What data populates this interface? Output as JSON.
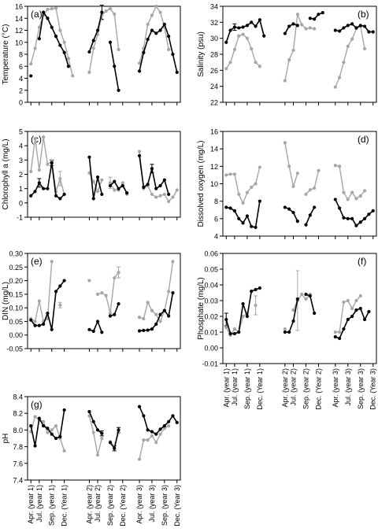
{
  "figure": {
    "x_tick_labels": [
      "Apr. (year 1)",
      "Jul. (year 1)",
      "Sep. (year 1)",
      "Dec. (Year 1)",
      "Apr. (year 2)",
      "Jul. (year 2)",
      "Sep. (year 2)",
      "Dec. (Year 2)",
      "Apr. (year 3)",
      "Jul. (year 3)",
      "Sep. (year 3)",
      "Dec. (Year 3)"
    ]
  },
  "colors": {
    "series_black": "#000000",
    "series_grey": "#a6a6a6",
    "axis": "#000000"
  },
  "chart_data": [
    {
      "type": "line",
      "panel_label": "(a)",
      "ylabel": "Temperature (°C)",
      "ylim": [
        0,
        16
      ],
      "yticks": [
        "0",
        "2",
        "4",
        "6",
        "8",
        "10",
        "12",
        "14",
        "16"
      ],
      "x": [
        1,
        2,
        3,
        4,
        5,
        6,
        7,
        8,
        9,
        10,
        11,
        12,
        13,
        14,
        15,
        16,
        17,
        18,
        19,
        20,
        21,
        22,
        23,
        24,
        25,
        26,
        27,
        28,
        29,
        30,
        31,
        32,
        33,
        34,
        35,
        36
      ],
      "series": [
        {
          "color": "black",
          "values": [
            4.4,
            null,
            10.6,
            15.0,
            14.0,
            12.5,
            11.0,
            9.5,
            8.3,
            6.0,
            null,
            null,
            null,
            null,
            8.4,
            10.3,
            12.0,
            15.0,
            null,
            10.0,
            6.0,
            2.0,
            null,
            null,
            null,
            null,
            5.2,
            8.3,
            10.5,
            12.0,
            11.5,
            12.0,
            13.0,
            11.0,
            8.0,
            5.0
          ]
        },
        {
          "color": "grey",
          "values": [
            6.4,
            9.0,
            12.5,
            14.5,
            15.5,
            15.6,
            15.7,
            12.0,
            10.0,
            7.3,
            4.4,
            null,
            null,
            null,
            5.0,
            9.0,
            11.3,
            14.5,
            15.2,
            15.6,
            14.7,
            8.8,
            null,
            null,
            null,
            null,
            6.5,
            9.0,
            13.0,
            14.5,
            16.0,
            15.0,
            12.5,
            8.8,
            null,
            null
          ]
        }
      ],
      "error_bars": [
        {
          "color": "black",
          "x": 18,
          "value": 15.0,
          "err": 1.2
        }
      ]
    },
    {
      "type": "line",
      "panel_label": "(b)",
      "ylabel": "Salinity (psu)",
      "ylim": [
        22,
        34
      ],
      "yticks": [
        "22",
        "24",
        "26",
        "28",
        "30",
        "32",
        "34"
      ],
      "x": [
        1,
        2,
        3,
        4,
        5,
        6,
        7,
        8,
        9,
        10,
        11,
        12,
        13,
        14,
        15,
        16,
        17,
        18,
        19,
        20,
        21,
        22,
        23,
        24,
        25,
        26,
        27,
        28,
        29,
        30,
        31,
        32,
        33,
        34,
        35,
        36
      ],
      "series": [
        {
          "color": "black",
          "values": [
            29.5,
            31.0,
            31.4,
            31.3,
            31.4,
            31.6,
            32.0,
            31.5,
            32.3,
            30.3,
            null,
            null,
            null,
            null,
            30.6,
            31.5,
            31.8,
            31.6,
            null,
            null,
            32.5,
            32.4,
            33.0,
            33.2,
            null,
            null,
            31.0,
            30.9,
            31.3,
            31.6,
            31.8,
            31.3,
            31.6,
            31.5,
            30.8,
            30.8
          ]
        },
        {
          "color": "grey",
          "values": [
            26.2,
            27.0,
            28.6,
            30.3,
            30.5,
            30.0,
            28.7,
            27.0,
            26.5,
            null,
            null,
            null,
            null,
            null,
            24.7,
            27.3,
            28.5,
            33.0,
            31.7,
            31.2,
            31.3,
            31.2,
            null,
            null,
            null,
            null,
            23.9,
            25.1,
            27.0,
            29.0,
            29.9,
            31.2,
            31.5,
            28.7,
            null,
            null
          ]
        }
      ],
      "error_bars": [
        {
          "color": "black",
          "x": 3,
          "value": 31.4,
          "err": 0.4
        }
      ]
    },
    {
      "type": "line",
      "panel_label": "(c)",
      "ylabel": "Chlorophyll a (mg/L)",
      "ylim": [
        -1,
        5
      ],
      "yticks": [
        "-1",
        "0",
        "1",
        "2",
        "3",
        "4",
        "5"
      ],
      "x": [
        1,
        2,
        3,
        4,
        5,
        6,
        7,
        8,
        9,
        10,
        11,
        12,
        13,
        14,
        15,
        16,
        17,
        18,
        19,
        20,
        21,
        22,
        23,
        24,
        25,
        26,
        27,
        28,
        29,
        30,
        31,
        32,
        33,
        34,
        35,
        36
      ],
      "series": [
        {
          "color": "black",
          "values": [
            0.5,
            0.8,
            1.4,
            1.0,
            1.0,
            2.8,
            0.5,
            0.3,
            0.6,
            null,
            null,
            null,
            null,
            null,
            3.2,
            0.3,
            1.8,
            0.6,
            null,
            1.2,
            1.5,
            1.0,
            1.2,
            0.7,
            null,
            null,
            3.3,
            1.1,
            1.3,
            2.4,
            1.0,
            1.2,
            1.6,
            0.6,
            null,
            null
          ]
        },
        {
          "color": "grey",
          "values": [
            2.2,
            4.5,
            2.3,
            4.6,
            2.7,
            2.9,
            0.8,
            1.7,
            0.6,
            null,
            null,
            null,
            null,
            null,
            2.1,
            1.5,
            0.8,
            1.6,
            null,
            1.4,
            0.9,
            0.9,
            1.4,
            0.6,
            null,
            null,
            3.6,
            1.0,
            1.2,
            0.6,
            0.4,
            0.5,
            0.6,
            0.1,
            0.4,
            0.9
          ]
        }
      ],
      "error_bars": [
        {
          "color": "grey",
          "x": 8,
          "value": 1.7,
          "err": 0.5
        },
        {
          "color": "black",
          "x": 3,
          "value": 1.4,
          "err": 0.3
        },
        {
          "color": "black",
          "x": 6,
          "value": 2.8,
          "err": 0.2
        },
        {
          "color": "black",
          "x": 30,
          "value": 2.4,
          "err": 0.3
        },
        {
          "color": "grey",
          "x": 20,
          "value": 1.4,
          "err": 0.4
        }
      ]
    },
    {
      "type": "line",
      "panel_label": "(d)",
      "ylabel": "Dissolved oxygen (mg/L)",
      "ylim": [
        4,
        16
      ],
      "yticks": [
        "4",
        "6",
        "8",
        "10",
        "12",
        "14",
        "16"
      ],
      "x": [
        1,
        2,
        3,
        4,
        5,
        6,
        7,
        8,
        9,
        10,
        11,
        12,
        13,
        14,
        15,
        16,
        17,
        18,
        19,
        20,
        21,
        22,
        23,
        24,
        25,
        26,
        27,
        28,
        29,
        30,
        31,
        32,
        33,
        34,
        35,
        36
      ],
      "series": [
        {
          "color": "black",
          "values": [
            7.3,
            7.2,
            6.9,
            6.0,
            5.5,
            6.3,
            5.1,
            5.0,
            8.0,
            null,
            null,
            null,
            null,
            null,
            7.3,
            7.1,
            6.7,
            5.7,
            null,
            5.3,
            6.4,
            7.3,
            null,
            null,
            null,
            null,
            8.2,
            7.2,
            6.1,
            6.0,
            6.0,
            5.2,
            5.6,
            6.0,
            6.5,
            6.9
          ]
        },
        {
          "color": "grey",
          "values": [
            11.0,
            11.1,
            11.1,
            8.8,
            7.8,
            9.0,
            9.6,
            10.0,
            11.9,
            null,
            null,
            null,
            null,
            null,
            14.7,
            12.0,
            9.7,
            11.2,
            null,
            8.8,
            9.3,
            9.5,
            11.5,
            null,
            null,
            null,
            12.1,
            12.0,
            9.0,
            8.2,
            9.0,
            8.3,
            8.6,
            9.2,
            null,
            null
          ]
        }
      ],
      "error_bars": []
    },
    {
      "type": "line",
      "panel_label": "(e)",
      "ylabel": "DIN (mg/L)",
      "ylim": [
        -0.05,
        0.3
      ],
      "yticks": [
        "-0.05",
        "0.00",
        "0.05",
        "0.10",
        "0.15",
        "0.20",
        "0.25",
        "0.30"
      ],
      "x": [
        1,
        2,
        3,
        4,
        5,
        6,
        7,
        8,
        9,
        10,
        11,
        12,
        13,
        14,
        15,
        16,
        17,
        18,
        19,
        20,
        21,
        22,
        23,
        24,
        25,
        26,
        27,
        28,
        29,
        30,
        31,
        32,
        33,
        34,
        35,
        36
      ],
      "series": [
        {
          "color": "black",
          "values": [
            0.055,
            0.035,
            0.035,
            0.04,
            0.08,
            0.02,
            0.16,
            0.18,
            0.2,
            null,
            null,
            null,
            null,
            null,
            0.02,
            0.014,
            0.05,
            0.01,
            null,
            0.07,
            0.075,
            0.115,
            null,
            null,
            null,
            null,
            0.015,
            0.017,
            0.018,
            0.022,
            0.04,
            0.075,
            0.09,
            0.07,
            0.155,
            null
          ]
        },
        {
          "color": "grey",
          "values": [
            0.06,
            0.05,
            0.125,
            0.05,
            0.06,
            0.27,
            null,
            0.11,
            null,
            null,
            null,
            null,
            null,
            null,
            0.2,
            null,
            0.15,
            0.155,
            0.145,
            0.08,
            0.21,
            0.23,
            null,
            null,
            null,
            null,
            0.065,
            0.06,
            0.12,
            0.09,
            0.075,
            0.05,
            0.09,
            0.16,
            0.27,
            null
          ]
        }
      ],
      "error_bars": [
        {
          "color": "grey",
          "x": 22,
          "value": 0.23,
          "err": 0.02
        },
        {
          "color": "grey",
          "x": 8,
          "value": 0.11,
          "err": 0.01
        }
      ]
    },
    {
      "type": "line",
      "panel_label": "(f)",
      "ylabel": "Phosphate (mg/L)",
      "ylim": [
        -0.01,
        0.06
      ],
      "yticks": [
        "-0.01",
        "0.00",
        "0.01",
        "0.02",
        "0.03",
        "0.04",
        "0.05",
        "0.06"
      ],
      "x": [
        1,
        2,
        3,
        4,
        5,
        6,
        7,
        8,
        9,
        10,
        11,
        12,
        13,
        14,
        15,
        16,
        17,
        18,
        19,
        20,
        21,
        22,
        23,
        24,
        25,
        26,
        27,
        28,
        29,
        30,
        31,
        32,
        33,
        34,
        35,
        36
      ],
      "series": [
        {
          "color": "black",
          "values": [
            0.018,
            0.009,
            0.009,
            0.01,
            0.028,
            0.02,
            0.036,
            0.037,
            0.038,
            null,
            null,
            null,
            null,
            null,
            0.01,
            0.01,
            0.017,
            0.031,
            null,
            0.034,
            0.033,
            0.022,
            null,
            null,
            null,
            null,
            0.007,
            0.006,
            0.012,
            0.018,
            0.02,
            0.024,
            0.025,
            0.018,
            0.023,
            null
          ]
        },
        {
          "color": "grey",
          "values": [
            0.013,
            0.008,
            0.012,
            0.01,
            0.02,
            0.022,
            null,
            0.027,
            null,
            null,
            null,
            null,
            null,
            null,
            0.012,
            null,
            0.024,
            0.03,
            0.034,
            0.031,
            0.034,
            null,
            null,
            null,
            null,
            null,
            0.01,
            0.01,
            0.029,
            0.03,
            0.025,
            0.03,
            0.033,
            null,
            null,
            null
          ]
        }
      ],
      "error_bars": [
        {
          "color": "grey",
          "x": 18,
          "value": 0.03,
          "err": 0.019
        },
        {
          "color": "black",
          "x": 1,
          "value": 0.018,
          "err": 0.004
        },
        {
          "color": "grey",
          "x": 8,
          "value": 0.027,
          "err": 0.006
        }
      ]
    },
    {
      "type": "line",
      "panel_label": "(g)",
      "ylabel": "pH",
      "ylim": [
        7.4,
        8.4
      ],
      "yticks": [
        "7.4",
        "7.6",
        "7.8",
        "8.0",
        "8.2",
        "8.4"
      ],
      "x": [
        1,
        2,
        3,
        4,
        5,
        6,
        7,
        8,
        9,
        10,
        11,
        12,
        13,
        14,
        15,
        16,
        17,
        18,
        19,
        20,
        21,
        22,
        23,
        24,
        25,
        26,
        27,
        28,
        29,
        30,
        31,
        32,
        33,
        34,
        35,
        36
      ],
      "series": [
        {
          "color": "black",
          "values": [
            8.05,
            7.81,
            8.14,
            8.05,
            8.02,
            7.95,
            7.9,
            7.92,
            8.24,
            null,
            null,
            null,
            null,
            null,
            8.22,
            8.1,
            8.0,
            7.96,
            null,
            7.85,
            7.78,
            8.0,
            null,
            null,
            null,
            null,
            8.28,
            8.17,
            8.0,
            7.98,
            7.95,
            8.01,
            8.05,
            8.1,
            8.17,
            8.09
          ]
        },
        {
          "color": "grey",
          "values": [
            7.98,
            8.16,
            8.12,
            8.1,
            7.97,
            8.0,
            8.05,
            7.9,
            7.75,
            null,
            null,
            null,
            null,
            null,
            8.17,
            7.97,
            7.7,
            7.9,
            null,
            7.86,
            7.8,
            7.97,
            null,
            null,
            null,
            null,
            7.65,
            7.88,
            7.88,
            7.93,
            7.85,
            7.95,
            8.02,
            8.05,
            null,
            null
          ]
        }
      ],
      "error_bars": [
        {
          "color": "black",
          "x": 18,
          "value": 7.96,
          "err": 0.03
        },
        {
          "color": "black",
          "x": 21,
          "value": 7.78,
          "err": 0.03
        },
        {
          "color": "black",
          "x": 22,
          "value": 8.0,
          "err": 0.03
        }
      ]
    }
  ]
}
